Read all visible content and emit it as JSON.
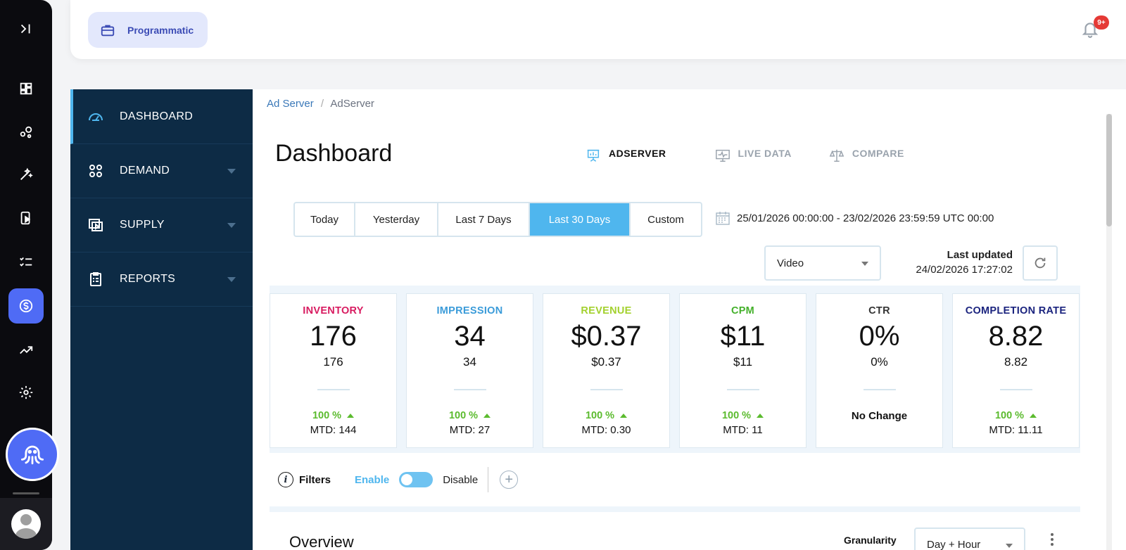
{
  "rail": {
    "items": [
      "expand-icon",
      "dashboard-icon",
      "nodes-icon",
      "magic-wand-icon",
      "video-device-icon",
      "checklist-icon",
      "dollar-icon",
      "trend-icon",
      "gear-icon"
    ],
    "active": "dollar-icon"
  },
  "topbar": {
    "chip_label": "Programmatic",
    "notification_badge": "9+"
  },
  "sidebar": {
    "items": [
      {
        "label": "DASHBOARD",
        "icon": "speedometer-icon"
      },
      {
        "label": "DEMAND",
        "icon": "grid-dots-icon"
      },
      {
        "label": "SUPPLY",
        "icon": "video-screen-icon"
      },
      {
        "label": "REPORTS",
        "icon": "clipboard-icon"
      }
    ]
  },
  "breadcrumb": {
    "parent": "Ad Server",
    "separator": "/",
    "current": "AdServer"
  },
  "page_title": "Dashboard",
  "tabs": [
    {
      "label": "ADSERVER",
      "icon": "presentation-chart-icon",
      "active": true
    },
    {
      "label": "LIVE DATA",
      "icon": "monitor-pulse-icon",
      "active": false
    },
    {
      "label": "COMPARE",
      "icon": "scales-icon",
      "active": false
    }
  ],
  "date_ranges": [
    {
      "label": "Today",
      "active": false
    },
    {
      "label": "Yesterday",
      "active": false
    },
    {
      "label": "Last 7 Days",
      "active": false
    },
    {
      "label": "Last 30 Days",
      "active": true
    },
    {
      "label": "Custom",
      "active": false
    }
  ],
  "date_range_text": "25/01/2026 00:00:00 - 23/02/2026 23:59:59 UTC 00:00",
  "media_select": {
    "value": "Video"
  },
  "last_updated": {
    "title": "Last updated",
    "value": "24/02/2026 17:27:02"
  },
  "cards": [
    {
      "title": "INVENTORY",
      "color": "#d81b60",
      "big": "176",
      "small": "176",
      "pct": "100 %",
      "mtd": "MTD: 144"
    },
    {
      "title": "IMPRESSION",
      "color": "#3a9bd9",
      "big": "34",
      "small": "34",
      "pct": "100 %",
      "mtd": "MTD: 27"
    },
    {
      "title": "REVENUE",
      "color": "#a3d12e",
      "big": "$0.37",
      "small": "$0.37",
      "pct": "100 %",
      "mtd": "MTD: 0.30"
    },
    {
      "title": "CPM",
      "color": "#43b02a",
      "big": "$11",
      "small": "$11",
      "pct": "100 %",
      "mtd": "MTD: 11"
    },
    {
      "title": "CTR",
      "color": "#333333",
      "big": "0%",
      "small": "0%",
      "no_change": "No Change"
    },
    {
      "title": "COMPLETION RATE",
      "color": "#1a237e",
      "big": "8.82",
      "small": "8.82",
      "pct": "100 %",
      "mtd": "MTD: 11.11"
    }
  ],
  "filters": {
    "label": "Filters",
    "enable": "Enable",
    "disable": "Disable"
  },
  "overview": {
    "title": "Overview",
    "granularity_label": "Granularity",
    "granularity_value": "Day + Hour"
  }
}
